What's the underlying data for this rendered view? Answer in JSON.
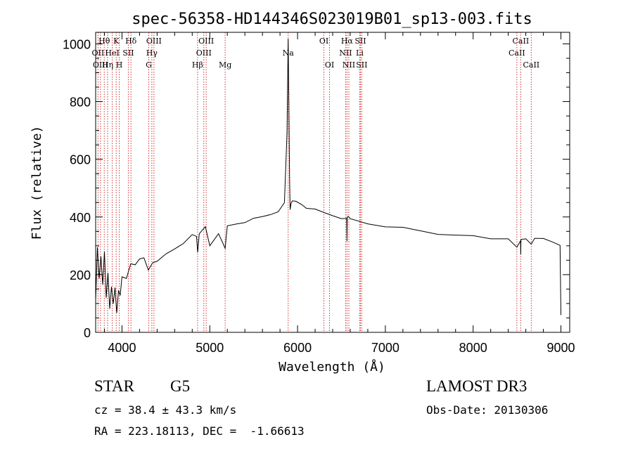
{
  "chart_data": {
    "type": "line",
    "title": "spec-56358-HD144346S023019B01_sp13-003.fits",
    "xlabel": "Wavelength (Å)",
    "ylabel": "Flux (relative)",
    "xlim": [
      3700,
      9100
    ],
    "ylim": [
      0,
      1040
    ],
    "x_ticks": [
      4000,
      5000,
      6000,
      7000,
      8000,
      9000
    ],
    "y_ticks": [
      0,
      200,
      400,
      600,
      800,
      1000
    ],
    "series": [
      {
        "name": "spectrum",
        "x": [
          3700,
          3720,
          3740,
          3760,
          3780,
          3800,
          3820,
          3840,
          3860,
          3880,
          3900,
          3920,
          3940,
          3960,
          3980,
          4000,
          4050,
          4100,
          4150,
          4200,
          4250,
          4300,
          4350,
          4400,
          4500,
          4600,
          4700,
          4800,
          4850,
          4862,
          4880,
          4950,
          5000,
          5100,
          5175,
          5200,
          5300,
          5400,
          5500,
          5600,
          5700,
          5780,
          5850,
          5880,
          5893,
          5900,
          5910,
          5915,
          5925,
          5940,
          5980,
          6050,
          6100,
          6200,
          6300,
          6400,
          6500,
          6560,
          6563,
          6566,
          6580,
          6600,
          6700,
          6800,
          7000,
          7200,
          7400,
          7600,
          7800,
          8000,
          8200,
          8400,
          8498,
          8540,
          8542,
          8545,
          8600,
          8662,
          8700,
          8800,
          8900,
          8990,
          9000
        ],
        "y": [
          110,
          280,
          160,
          230,
          130,
          250,
          100,
          200,
          90,
          180,
          130,
          190,
          100,
          170,
          140,
          190,
          170,
          210,
          200,
          220,
          230,
          210,
          240,
          250,
          280,
          300,
          320,
          350,
          340,
          280,
          340,
          360,
          290,
          330,
          280,
          360,
          370,
          380,
          400,
          410,
          420,
          430,
          460,
          700,
          1020,
          820,
          520,
          420,
          440,
          450,
          450,
          440,
          430,
          430,
          420,
          410,
          400,
          400,
          320,
          400,
          400,
          390,
          380,
          370,
          360,
          360,
          350,
          340,
          340,
          340,
          330,
          330,
          300,
          320,
          270,
          320,
          320,
          300,
          320,
          320,
          310,
          300,
          60
        ]
      }
    ],
    "lines_color": "#d43030",
    "line_labels": [
      {
        "label": "Hθ",
        "wl": 3798,
        "row": 0
      },
      {
        "label": "K",
        "wl": 3934,
        "row": 0
      },
      {
        "label": "Hδ",
        "wl": 4102,
        "row": 0
      },
      {
        "label": "OIII",
        "wl": 4364,
        "row": 0
      },
      {
        "label": "OIII",
        "wl": 4959,
        "row": 0
      },
      {
        "label": "OI",
        "wl": 6300,
        "row": 0
      },
      {
        "label": "Hα",
        "wl": 6563,
        "row": 0
      },
      {
        "label": "SII",
        "wl": 6716,
        "row": 0
      },
      {
        "label": "CaII",
        "wl": 8542,
        "row": 0
      },
      {
        "label": "OII",
        "wl": 3727,
        "row": 1
      },
      {
        "label": "HeI",
        "wl": 3889,
        "row": 1
      },
      {
        "label": "SII",
        "wl": 4072,
        "row": 1
      },
      {
        "label": "Hγ",
        "wl": 4340,
        "row": 1
      },
      {
        "label": "OIII",
        "wl": 4932,
        "row": 1
      },
      {
        "label": "Na",
        "wl": 5893,
        "row": 1
      },
      {
        "label": "NII",
        "wl": 6548,
        "row": 1
      },
      {
        "label": "Li",
        "wl": 6708,
        "row": 1
      },
      {
        "label": "CaII",
        "wl": 8498,
        "row": 1
      },
      {
        "label": "OIII",
        "wl": 3755,
        "row": 2
      },
      {
        "label": "Hη",
        "wl": 3836,
        "row": 2
      },
      {
        "label": "H",
        "wl": 3969,
        "row": 2
      },
      {
        "label": "G",
        "wl": 4305,
        "row": 2
      },
      {
        "label": "Hβ",
        "wl": 4861,
        "row": 2
      },
      {
        "label": "Mg",
        "wl": 5175,
        "row": 2
      },
      {
        "label": "OI",
        "wl": 6364,
        "row": 2
      },
      {
        "label": "NII",
        "wl": 6584,
        "row": 2
      },
      {
        "label": "SII",
        "wl": 6731,
        "row": 2
      },
      {
        "label": "CaII",
        "wl": 8662,
        "row": 2
      }
    ],
    "line_marks": [
      3727,
      3755,
      3798,
      3836,
      3889,
      3934,
      3969,
      4072,
      4102,
      4305,
      4340,
      4364,
      4861,
      4932,
      4959,
      5175,
      5893,
      6300,
      6364,
      6548,
      6563,
      6584,
      6708,
      6716,
      6731,
      8498,
      8542,
      8662
    ]
  },
  "info": {
    "object_class": "STAR",
    "subclass": "G5",
    "survey": "LAMOST DR3",
    "redshift": "cz = 38.4 ± 43.3 km/s",
    "obs_date": "Obs-Date: 20130306",
    "coords": "RA = 223.18113, DEC =  -1.66613"
  }
}
